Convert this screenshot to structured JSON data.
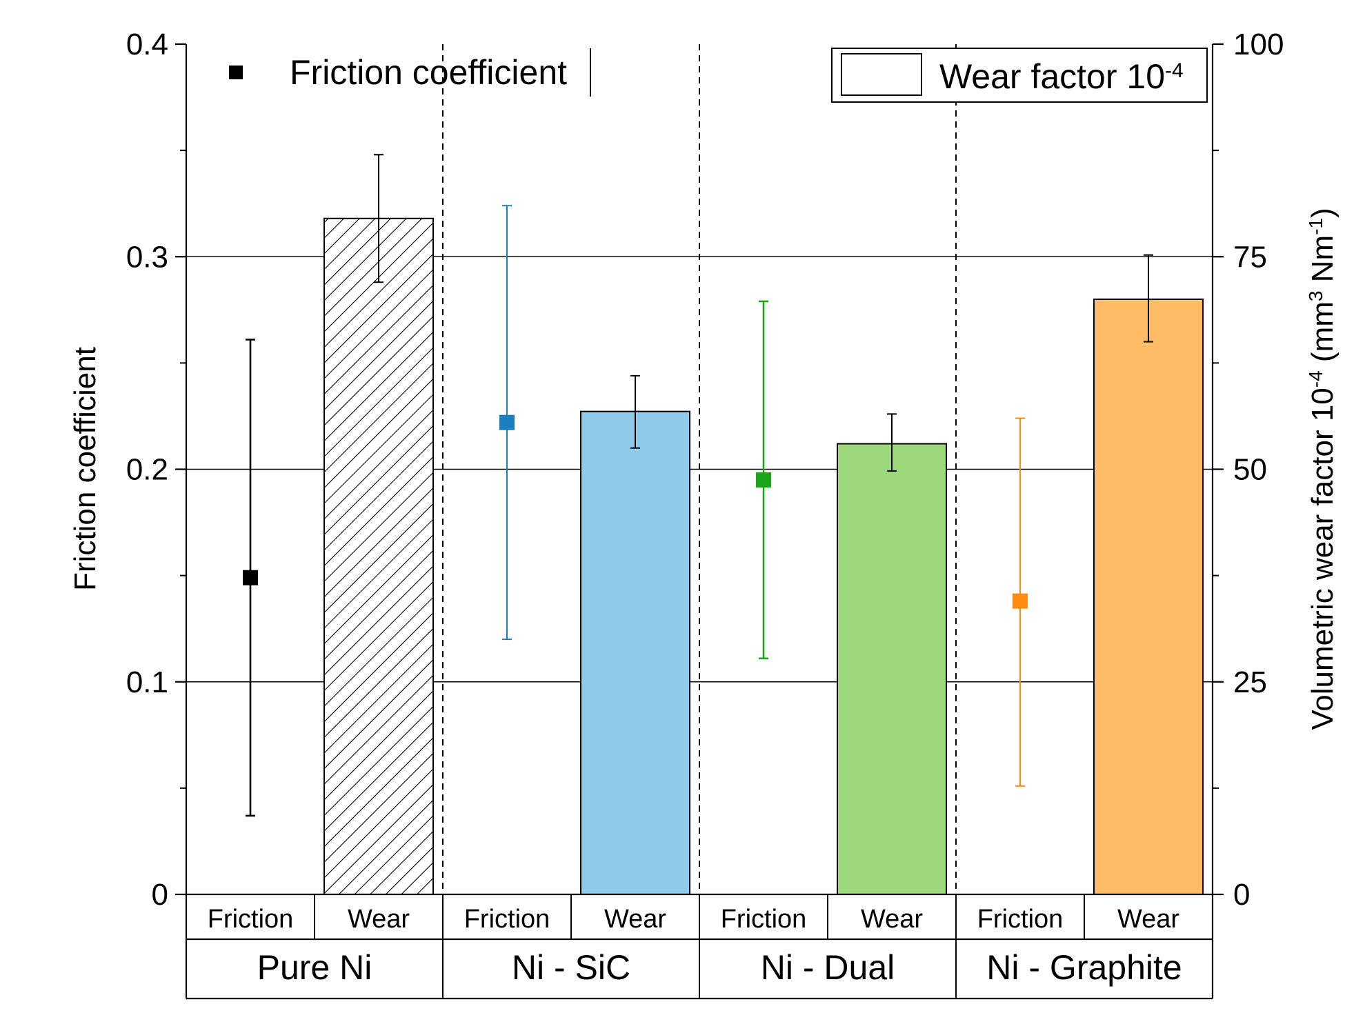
{
  "chart_data": {
    "type": "bar",
    "left_axis": {
      "title": "Friction coefficient",
      "ylim": [
        0,
        0.4
      ],
      "ticks": [
        0,
        0.1,
        0.2,
        0.3,
        0.4
      ],
      "tick_labels": [
        "0",
        "0.1",
        "0.2",
        "0.3",
        "0.4"
      ]
    },
    "right_axis": {
      "title_parts": [
        "Volumetric wear factor 10",
        "-4",
        " (mm",
        "3",
        " Nm",
        "-1",
        ")"
      ],
      "ylim": [
        0,
        100
      ],
      "ticks": [
        0,
        25,
        50,
        75,
        100
      ],
      "tick_labels": [
        "0",
        "25",
        "50",
        "75",
        "100"
      ]
    },
    "legend": {
      "friction_label": "Friction coefficient",
      "wear_label": "Wear factor 10",
      "wear_label_sup": "-4"
    },
    "sub_labels": [
      "Friction",
      "Wear"
    ],
    "groups": [
      {
        "name": "Pure Ni",
        "color": "#000000",
        "bar_color": "#ffffff",
        "hatched": true,
        "friction": 0.149,
        "friction_err_low": 0.037,
        "friction_err_high": 0.261,
        "wear": 79.5,
        "wear_err_low": 72.0,
        "wear_err_high": 87.0
      },
      {
        "name": "Ni - SiC",
        "color": "#1a7fc1",
        "bar_color": "#8fcbe8",
        "hatched": false,
        "friction": 0.222,
        "friction_err_low": 0.12,
        "friction_err_high": 0.324,
        "wear": 56.8,
        "wear_err_low": 52.5,
        "wear_err_high": 61.0
      },
      {
        "name": "Ni - Dual",
        "color": "#1aa51a",
        "bar_color": "#9ed87c",
        "hatched": false,
        "friction": 0.195,
        "friction_err_low": 0.111,
        "friction_err_high": 0.279,
        "wear": 53.0,
        "wear_err_low": 49.8,
        "wear_err_high": 56.5
      },
      {
        "name": "Ni - Graphite",
        "color": "#ff8a10",
        "bar_color": "#ffbb66",
        "hatched": false,
        "friction": 0.138,
        "friction_err_low": 0.051,
        "friction_err_high": 0.224,
        "wear": 70.0,
        "wear_err_low": 65.0,
        "wear_err_high": 75.2
      }
    ]
  }
}
